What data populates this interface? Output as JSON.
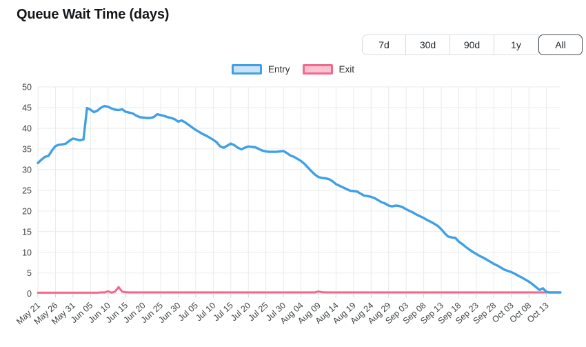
{
  "header": {
    "title": "Queue Wait Time (days)"
  },
  "toolbar": {
    "buttons": [
      {
        "label": "7d",
        "selected": false
      },
      {
        "label": "30d",
        "selected": false
      },
      {
        "label": "90d",
        "selected": false
      },
      {
        "label": "1y",
        "selected": false
      },
      {
        "label": "All",
        "selected": true
      }
    ]
  },
  "legend": [
    {
      "label": "Entry",
      "color": "#3fa0e6",
      "fill": "#cbe3f8"
    },
    {
      "label": "Exit",
      "color": "#f4688c",
      "fill": "#fbc3d1"
    }
  ],
  "chart_data": {
    "type": "line",
    "title": "Queue Wait Time (days)",
    "xlabel": "",
    "ylabel": "",
    "ylim": [
      0,
      50
    ],
    "y_ticks": [
      0,
      5,
      10,
      15,
      20,
      25,
      30,
      35,
      40,
      45,
      50
    ],
    "grid": true,
    "grid_color": "#e9eaec",
    "tick_color": "#d5d8db",
    "legend_position": "top-center",
    "x_frequency": "daily",
    "x_first": "May 21",
    "points_per_tick": 5,
    "x_tick_labels": [
      "May 21",
      "May 26",
      "May 31",
      "Jun 05",
      "Jun 10",
      "Jun 15",
      "Jun 20",
      "Jun 25",
      "Jun 30",
      "Jul 05",
      "Jul 10",
      "Jul 15",
      "Jul 20",
      "Jul 25",
      "Jul 30",
      "Aug 04",
      "Aug 09",
      "Aug 14",
      "Aug 19",
      "Aug 24",
      "Aug 29",
      "Sep 03",
      "Sep 08",
      "Sep 13",
      "Sep 18",
      "Sep 23",
      "Sep 28",
      "Oct 03",
      "Oct 08",
      "Oct 13"
    ],
    "series": [
      {
        "name": "Entry",
        "color": "#3fa0e6",
        "values": [
          31.6,
          32.4,
          33.1,
          33.3,
          34.6,
          35.7,
          36.0,
          36.1,
          36.3,
          37.0,
          37.5,
          37.3,
          37.1,
          37.3,
          44.9,
          44.5,
          43.9,
          44.3,
          45.0,
          45.4,
          45.2,
          44.8,
          44.5,
          44.4,
          44.6,
          44.0,
          43.8,
          43.6,
          43.1,
          42.7,
          42.6,
          42.5,
          42.5,
          42.7,
          43.4,
          43.2,
          43.0,
          42.7,
          42.5,
          42.2,
          41.6,
          41.9,
          41.4,
          40.8,
          40.2,
          39.6,
          39.1,
          38.6,
          38.2,
          37.7,
          37.2,
          36.6,
          35.6,
          35.3,
          35.8,
          36.3,
          35.9,
          35.3,
          34.9,
          35.3,
          35.6,
          35.5,
          35.4,
          35.0,
          34.6,
          34.4,
          34.3,
          34.3,
          34.3,
          34.4,
          34.5,
          34.0,
          33.4,
          33.1,
          32.6,
          32.1,
          31.4,
          30.5,
          29.6,
          28.8,
          28.2,
          28.0,
          27.9,
          27.7,
          27.2,
          26.5,
          26.1,
          25.7,
          25.3,
          24.9,
          24.8,
          24.7,
          24.2,
          23.7,
          23.6,
          23.4,
          23.1,
          22.6,
          22.1,
          21.8,
          21.3,
          21.1,
          21.3,
          21.2,
          20.9,
          20.4,
          20.0,
          19.6,
          19.1,
          18.7,
          18.3,
          17.8,
          17.4,
          16.9,
          16.4,
          15.6,
          14.6,
          13.8,
          13.6,
          13.5,
          12.6,
          12.0,
          11.3,
          10.7,
          10.1,
          9.6,
          9.1,
          8.7,
          8.2,
          7.7,
          7.2,
          6.8,
          6.3,
          5.8,
          5.5,
          5.2,
          4.8,
          4.3,
          3.9,
          3.4,
          2.9,
          2.3,
          1.6,
          0.9,
          1.3,
          0.4,
          0.3,
          0.3,
          0.3,
          0.3
        ]
      },
      {
        "name": "Exit",
        "color": "#f4688c",
        "values": [
          0.25,
          0.25,
          0.25,
          0.25,
          0.25,
          0.25,
          0.25,
          0.25,
          0.25,
          0.25,
          0.25,
          0.25,
          0.25,
          0.25,
          0.25,
          0.25,
          0.25,
          0.25,
          0.3,
          0.3,
          0.6,
          0.25,
          0.5,
          1.6,
          0.5,
          0.35,
          0.3,
          0.3,
          0.3,
          0.3,
          0.3,
          0.3,
          0.3,
          0.3,
          0.3,
          0.3,
          0.3,
          0.3,
          0.3,
          0.3,
          0.3,
          0.3,
          0.3,
          0.3,
          0.3,
          0.3,
          0.3,
          0.3,
          0.3,
          0.3,
          0.3,
          0.3,
          0.3,
          0.3,
          0.3,
          0.3,
          0.3,
          0.3,
          0.3,
          0.3,
          0.3,
          0.3,
          0.3,
          0.3,
          0.3,
          0.3,
          0.3,
          0.3,
          0.3,
          0.3,
          0.3,
          0.3,
          0.3,
          0.3,
          0.3,
          0.3,
          0.3,
          0.3,
          0.3,
          0.3,
          0.55,
          0.35,
          0.3,
          0.3,
          0.3,
          0.3,
          0.3,
          0.3,
          0.3,
          0.3,
          0.3,
          0.3,
          0.3,
          0.3,
          0.3,
          0.3,
          0.3,
          0.3,
          0.3,
          0.3,
          0.3,
          0.3,
          0.3,
          0.3,
          0.3,
          0.3,
          0.3,
          0.3,
          0.3,
          0.3,
          0.3,
          0.3,
          0.3,
          0.3,
          0.3,
          0.3,
          0.3,
          0.3,
          0.3,
          0.3,
          0.3,
          0.3,
          0.3,
          0.3,
          0.3,
          0.3,
          0.3,
          0.3,
          0.3,
          0.3,
          0.3,
          0.3,
          0.3,
          0.3,
          0.3,
          0.3,
          0.3,
          0.3,
          0.3,
          0.3,
          0.3,
          0.3,
          0.3,
          0.3,
          0.3,
          0.3,
          0.3,
          0.3,
          0.3,
          0.3
        ]
      }
    ]
  }
}
